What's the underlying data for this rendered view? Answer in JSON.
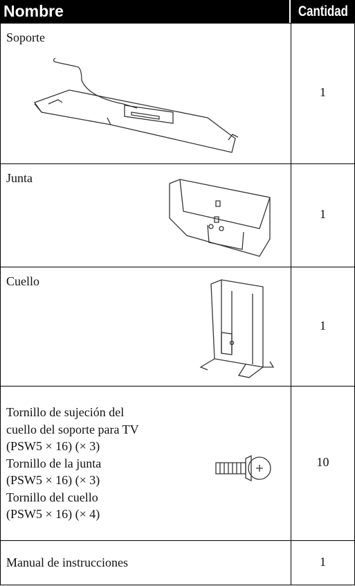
{
  "table": {
    "header": [
      "Nombre",
      "Cantidad"
    ],
    "rows": [
      {
        "name_lines": [
          "Soporte"
        ],
        "quantity": "1"
      },
      {
        "name_lines": [
          "Junta"
        ],
        "quantity": "1"
      },
      {
        "name_lines": [
          "Cuello"
        ],
        "quantity": "1"
      },
      {
        "name_lines": [
          "Tornillo de sujeción del",
          "cuello del soporte para TV",
          "(PSW5 × 16) (× 3)",
          "Tornillo de la junta",
          "(PSW5 × 16) (× 3)",
          "Tornillo del cuello",
          "(PSW5 × 16) (× 4)"
        ],
        "quantity": "10"
      },
      {
        "name_lines": [
          "Manual de instrucciones"
        ],
        "quantity": "1"
      }
    ]
  }
}
